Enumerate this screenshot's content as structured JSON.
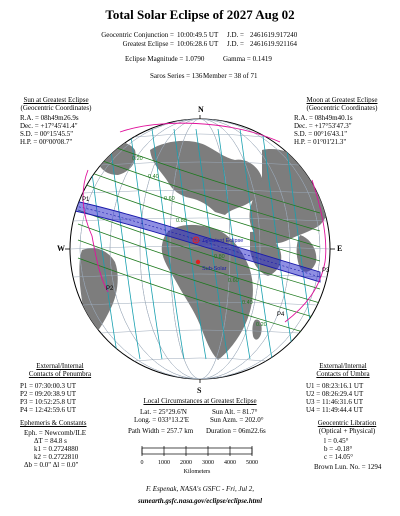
{
  "title": "Total Solar Eclipse of  2027 Aug 02",
  "header": {
    "conj_label": "Geocentric Conjunction =",
    "conj_time": "10:00:49.5 UT",
    "conj_jd_label": "J.D. =",
    "conj_jd": "2461619.917240",
    "greatest_label": "Greatest Eclipse =",
    "greatest_time": "10:06:28.6 UT",
    "greatest_jd_label": "J.D. =",
    "greatest_jd": "2461619.921164",
    "magnitude": "Eclipse Magnitude = 1.0790",
    "gamma": "Gamma = 0.1419",
    "saros": "Saros Series = 136",
    "member": "Member = 38 of 71"
  },
  "sun": {
    "heading1": "Sun at Greatest Eclipse",
    "heading2": "(Geocentric Coordinates)",
    "ra": "R.A. = 08h49m26.9s",
    "dec": "Dec. = +17°45'41.4\"",
    "sd": "S.D. = 00°15'45.5\"",
    "hp": "H.P. = 00°00'08.7\""
  },
  "moon": {
    "heading1": "Moon at Greatest Eclipse",
    "heading2": "(Geocentric Coordinates)",
    "ra": "R.A. = 08h49m40.1s",
    "dec": "Dec. = +17°53'47.3\"",
    "sd": "S.D. = 00°16'43.1\"",
    "hp": "H.P. = 01°01'21.3\""
  },
  "map": {
    "north": "N",
    "south": "S",
    "west": "W",
    "east": "E",
    "p1": "P1",
    "p2": "P2",
    "p3": "P3",
    "p4": "P4",
    "greatest_label": "Greatest Eclipse",
    "subsolar_label": "Sub-Solar",
    "contour_labels": [
      "0.20",
      "0.40",
      "0.60",
      "0.80",
      "0.80",
      "0.60",
      "0.40",
      "0.20"
    ],
    "colors": {
      "path": "#1a1aaa",
      "umbra_fill": "#3333cc",
      "penumbra_lines": "#e0119b",
      "time_lines": "#18a0b0",
      "land": "#7d7d7d",
      "grid": "#9aa8b8",
      "contour": "#1e7a1e",
      "ocean": "#ffffff",
      "subsolar": "#e02020"
    }
  },
  "penumbra": {
    "heading1": "External/Internal",
    "heading2": "Contacts of Penumbra",
    "p1": "P1 = 07:30:00.3 UT",
    "p2": "P2 = 09:20:38.9 UT",
    "p3": "P3 = 10:52:25.8 UT",
    "p4": "P4 = 12:42:59.6 UT"
  },
  "umbra": {
    "heading1": "External/Internal",
    "heading2": "Contacts of Umbra",
    "u1": "U1 = 08:23:16.1 UT",
    "u2": "U2 = 08:26:29.4 UT",
    "u3": "U3 = 11:46:31.6 UT",
    "u4": "U4 = 11:49:44.4 UT"
  },
  "local": {
    "heading": "Local Circumstances at Greatest Eclipse",
    "lat": "Lat. =  25°29.6'N",
    "sun_alt": "Sun Alt. =   81.7°",
    "long": "Long. = 033°13.2'E",
    "sun_azm": "Sun Azm. = 202.0°",
    "path_width": "Path Width = 257.7 km",
    "duration": "Duration =  06m22.6s"
  },
  "ephemeris": {
    "heading": "Ephemeris & Constants",
    "eph": "Eph. = Newcomb/ILE",
    "dt": "ΔT =    84.8 s",
    "k1": "k1 = 0.2724880",
    "k2": "k2 = 0.2722810",
    "db_dl": "Δb =   0.0\"   Δl =   0.0\""
  },
  "libration": {
    "heading1": "Geocentric Libration",
    "heading2": "(Optical + Physical)",
    "l": "l =   0.45°",
    "b": "b =  -0.18°",
    "c": "c =  14.05°",
    "lun": "Brown Lun. No. = 1294"
  },
  "scale": {
    "ticks": [
      "0",
      "1000",
      "2000",
      "3000",
      "4000",
      "5000"
    ],
    "unit": "Kilometers"
  },
  "credits": {
    "line1": "F. Espenak, NASA's GSFC - Fri, Jul 2,",
    "line2": "sunearth.gsfc.nasa.gov/eclipse/eclipse.html"
  }
}
